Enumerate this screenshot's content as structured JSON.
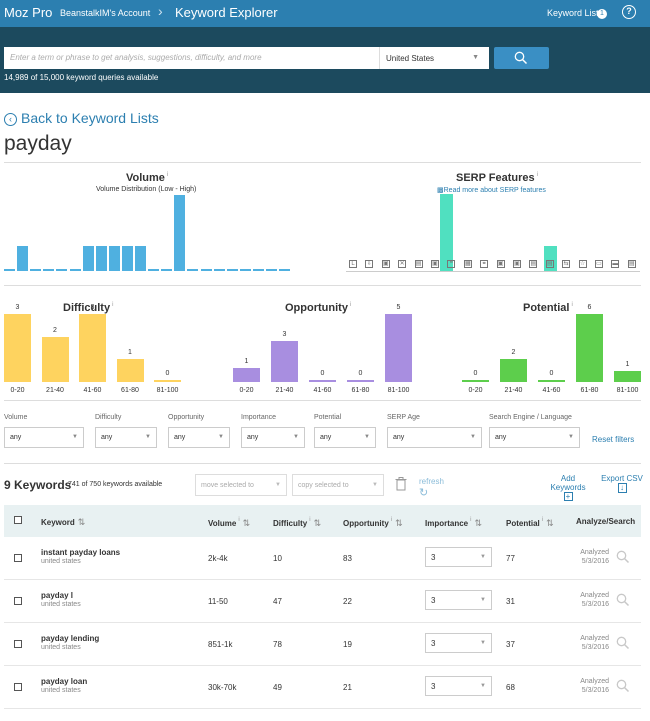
{
  "header": {
    "brand": "Moz Pro",
    "account": "BeanstalkIM's Account",
    "title": "Keyword Explorer",
    "keyword_lists": "Keyword Lists",
    "keyword_lists_count": "1",
    "help": "?"
  },
  "search": {
    "placeholder": "Enter a term or phrase to get analysis, suggestions, difficulty, and more",
    "country": "United States",
    "queries_available": "14,989 of 15,000 keyword queries available"
  },
  "page": {
    "back_label": "Back to Keyword Lists",
    "keyword": "payday"
  },
  "volume": {
    "title": "Volume",
    "subtitle": "Volume Distribution (Low - High)",
    "bars": [
      0.06,
      1,
      0.06,
      0.06,
      0.06,
      0.06,
      1,
      1,
      1,
      1,
      1,
      0.06,
      0.06,
      3,
      0.06,
      0.06,
      0.06,
      0.06,
      0.06,
      0.06,
      0.06,
      0.06
    ]
  },
  "serp": {
    "title": "SERP Features",
    "link": "Read more about SERP features",
    "bars": [
      0,
      0,
      0,
      0,
      0,
      0,
      0,
      0,
      1,
      0,
      0,
      0,
      0,
      0,
      0,
      0,
      0,
      0.33,
      0,
      0,
      0,
      0,
      0,
      0,
      0
    ],
    "icons": [
      "serp-local-icon",
      "serp-download-icon",
      "serp-shopping-icon",
      "serp-x-icon",
      "serp-image-icon",
      "serp-feature-icon",
      "serp-quote-icon",
      "serp-grid-icon",
      "serp-link-icon",
      "serp-knowledge-icon",
      "serp-video-icon",
      "serp-card-icon",
      "serp-news-icon",
      "serp-swap-icon",
      "serp-star-icon",
      "serp-cart-icon",
      "serp-ad-icon",
      "serp-sitelink-icon"
    ]
  },
  "difficulty": {
    "title": "Difficulty",
    "color": "#fed35f",
    "categories": [
      "0-20",
      "21-40",
      "41-60",
      "61-80",
      "81-100"
    ],
    "values": [
      3,
      2,
      3,
      1,
      0
    ]
  },
  "opportunity": {
    "title": "Opportunity",
    "color": "#a88ee0",
    "categories": [
      "0-20",
      "21-40",
      "41-60",
      "61-80",
      "81-100"
    ],
    "values": [
      1,
      3,
      0,
      0,
      5
    ]
  },
  "potential": {
    "title": "Potential",
    "color": "#5dce4c",
    "categories": [
      "0-20",
      "21-40",
      "41-60",
      "61-80",
      "81-100"
    ],
    "values": [
      0,
      2,
      0,
      6,
      1
    ]
  },
  "filters": [
    {
      "label": "Volume",
      "value": "any"
    },
    {
      "label": "Difficulty",
      "value": "any"
    },
    {
      "label": "Opportunity",
      "value": "any"
    },
    {
      "label": "Importance",
      "value": "any"
    },
    {
      "label": "Potential",
      "value": "any"
    },
    {
      "label": "SERP Age",
      "value": "any"
    },
    {
      "label": "Search Engine / Language",
      "value": "any"
    }
  ],
  "filters_reset": "Reset filters",
  "list": {
    "count": "9 Keywords",
    "available": "741 of 750 keywords available",
    "move": "move selected to",
    "copy": "copy selected to",
    "refresh": "refresh",
    "add": "Add Keywords",
    "export": "Export CSV"
  },
  "table": {
    "headers": {
      "keyword": "Keyword",
      "volume": "Volume",
      "difficulty": "Difficulty",
      "opportunity": "Opportunity",
      "importance": "Importance",
      "potential": "Potential",
      "analyze": "Analyze/Search"
    },
    "rows": [
      {
        "keyword": "instant payday loans",
        "location": "united states",
        "volume": "2k-4k",
        "difficulty": "10",
        "opportunity": "83",
        "importance": "3",
        "potential": "77",
        "analyzed": "Analyzed",
        "date": "5/3/2016"
      },
      {
        "keyword": "payday l",
        "location": "united states",
        "volume": "11-50",
        "difficulty": "47",
        "opportunity": "22",
        "importance": "3",
        "potential": "31",
        "analyzed": "Analyzed",
        "date": "5/3/2016"
      },
      {
        "keyword": "payday lending",
        "location": "united states",
        "volume": "851-1k",
        "difficulty": "78",
        "opportunity": "19",
        "importance": "3",
        "potential": "37",
        "analyzed": "Analyzed",
        "date": "5/3/2016"
      },
      {
        "keyword": "payday loan",
        "location": "united states",
        "volume": "30k-70k",
        "difficulty": "49",
        "opportunity": "21",
        "importance": "3",
        "potential": "68",
        "analyzed": "Analyzed",
        "date": "5/3/2016"
      }
    ]
  }
}
